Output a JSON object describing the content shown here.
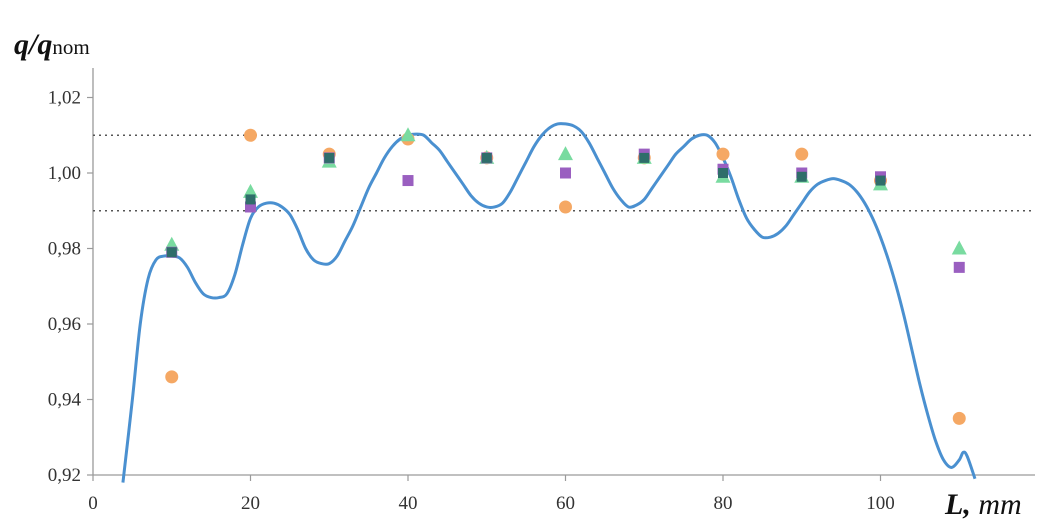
{
  "chart_data": {
    "type": "scatter",
    "title": "",
    "ylabel": {
      "var": "q/q",
      "sub": "nom"
    },
    "xlabel": {
      "var": "L,",
      "unit": "mm"
    },
    "xlim": [
      0,
      120
    ],
    "ylim": [
      0.92,
      1.03
    ],
    "x_ticks": [
      {
        "value": 0,
        "label": "0"
      },
      {
        "value": 20,
        "label": "20"
      },
      {
        "value": 40,
        "label": "40"
      },
      {
        "value": 60,
        "label": "60"
      },
      {
        "value": 80,
        "label": "80"
      },
      {
        "value": 100,
        "label": "100"
      }
    ],
    "y_ticks": [
      {
        "value": 0.92,
        "label": "0,92"
      },
      {
        "value": 0.94,
        "label": "0,94"
      },
      {
        "value": 0.96,
        "label": "0,96"
      },
      {
        "value": 0.98,
        "label": "0,98"
      },
      {
        "value": 1.0,
        "label": "1,00"
      },
      {
        "value": 1.02,
        "label": "1,02"
      }
    ],
    "reference_lines": [
      1.01,
      0.99
    ],
    "grid": false,
    "curve": {
      "color": "#4a90d0",
      "points": [
        [
          3.8,
          0.918
        ],
        [
          5,
          0.94
        ],
        [
          6,
          0.96
        ],
        [
          7,
          0.972
        ],
        [
          8,
          0.977
        ],
        [
          9,
          0.978
        ],
        [
          10,
          0.978
        ],
        [
          11,
          0.9775
        ],
        [
          12,
          0.975
        ],
        [
          13,
          0.971
        ],
        [
          14,
          0.968
        ],
        [
          15,
          0.967
        ],
        [
          16,
          0.967
        ],
        [
          17,
          0.968
        ],
        [
          18,
          0.973
        ],
        [
          19,
          0.981
        ],
        [
          20,
          0.988
        ],
        [
          21,
          0.991
        ],
        [
          22,
          0.992
        ],
        [
          23,
          0.992
        ],
        [
          24,
          0.991
        ],
        [
          25,
          0.989
        ],
        [
          26,
          0.985
        ],
        [
          27,
          0.98
        ],
        [
          28,
          0.977
        ],
        [
          29,
          0.976
        ],
        [
          30,
          0.976
        ],
        [
          31,
          0.978
        ],
        [
          32,
          0.982
        ],
        [
          33,
          0.986
        ],
        [
          34,
          0.991
        ],
        [
          35,
          0.996
        ],
        [
          36,
          1.0
        ],
        [
          37,
          1.004
        ],
        [
          38,
          1.007
        ],
        [
          39,
          1.009
        ],
        [
          40,
          1.01
        ],
        [
          41,
          1.0103
        ],
        [
          42,
          1.01
        ],
        [
          43,
          1.008
        ],
        [
          44,
          1.006
        ],
        [
          45,
          1.003
        ],
        [
          46,
          1.0
        ],
        [
          47,
          0.997
        ],
        [
          48,
          0.994
        ],
        [
          49,
          0.992
        ],
        [
          50,
          0.991
        ],
        [
          51,
          0.991
        ],
        [
          52,
          0.992
        ],
        [
          53,
          0.995
        ],
        [
          54,
          0.999
        ],
        [
          55,
          1.003
        ],
        [
          56,
          1.007
        ],
        [
          57,
          1.01
        ],
        [
          58,
          1.012
        ],
        [
          59,
          1.013
        ],
        [
          60,
          1.013
        ],
        [
          61,
          1.0125
        ],
        [
          62,
          1.011
        ],
        [
          63,
          1.008
        ],
        [
          64,
          1.004
        ],
        [
          65,
          1.0
        ],
        [
          66,
          0.996
        ],
        [
          67,
          0.993
        ],
        [
          68,
          0.991
        ],
        [
          69,
          0.9915
        ],
        [
          70,
          0.993
        ],
        [
          71,
          0.996
        ],
        [
          72,
          0.999
        ],
        [
          73,
          1.002
        ],
        [
          74,
          1.005
        ],
        [
          75,
          1.007
        ],
        [
          76,
          1.009
        ],
        [
          77,
          1.01
        ],
        [
          78,
          1.01
        ],
        [
          79,
          1.008
        ],
        [
          80,
          1.004
        ],
        [
          81,
          0.999
        ],
        [
          82,
          0.993
        ],
        [
          83,
          0.988
        ],
        [
          84,
          0.985
        ],
        [
          85,
          0.983
        ],
        [
          86,
          0.983
        ],
        [
          87,
          0.984
        ],
        [
          88,
          0.986
        ],
        [
          89,
          0.989
        ],
        [
          90,
          0.992
        ],
        [
          91,
          0.995
        ],
        [
          92,
          0.997
        ],
        [
          93,
          0.998
        ],
        [
          94,
          0.9985
        ],
        [
          95,
          0.998
        ],
        [
          96,
          0.997
        ],
        [
          97,
          0.995
        ],
        [
          98,
          0.992
        ],
        [
          99,
          0.988
        ],
        [
          100,
          0.983
        ],
        [
          101,
          0.977
        ],
        [
          102,
          0.97
        ],
        [
          103,
          0.962
        ],
        [
          104,
          0.953
        ],
        [
          105,
          0.944
        ],
        [
          106,
          0.936
        ],
        [
          107,
          0.929
        ],
        [
          108,
          0.924
        ],
        [
          109,
          0.922
        ],
        [
          110,
          0.924
        ],
        [
          110.5,
          0.926
        ],
        [
          111,
          0.925
        ],
        [
          112,
          0.919
        ]
      ]
    },
    "series": [
      {
        "marker": "circle",
        "color": "#f5a864",
        "points": [
          [
            10,
            0.946
          ],
          [
            20,
            1.01
          ],
          [
            30,
            1.005
          ],
          [
            40,
            1.009
          ],
          [
            50,
            1.004
          ],
          [
            60,
            0.991
          ],
          [
            70,
            1.004
          ],
          [
            80,
            1.005
          ],
          [
            90,
            1.005
          ],
          [
            100,
            0.998
          ],
          [
            110,
            0.935
          ]
        ]
      },
      {
        "marker": "triangle",
        "color": "#79dba0",
        "points": [
          [
            10,
            0.981
          ],
          [
            20,
            0.995
          ],
          [
            30,
            1.003
          ],
          [
            40,
            1.01
          ],
          [
            50,
            1.004
          ],
          [
            60,
            1.005
          ],
          [
            70,
            1.004
          ],
          [
            80,
            0.999
          ],
          [
            90,
            0.999
          ],
          [
            100,
            0.997
          ],
          [
            110,
            0.98
          ]
        ]
      },
      {
        "marker": "square",
        "color": "#9a5fc0",
        "points": [
          [
            10,
            0.979
          ],
          [
            20,
            0.991
          ],
          [
            30,
            1.004
          ],
          [
            40,
            0.998
          ],
          [
            50,
            1.004
          ],
          [
            60,
            1.0
          ],
          [
            70,
            1.005
          ],
          [
            80,
            1.001
          ],
          [
            90,
            1.0
          ],
          [
            100,
            0.999
          ],
          [
            110,
            0.975
          ]
        ]
      },
      {
        "marker": "square",
        "color": "#2f6e6a",
        "points": [
          [
            10,
            0.979
          ],
          [
            20,
            0.993
          ],
          [
            30,
            1.004
          ],
          [
            50,
            1.004
          ],
          [
            70,
            1.004
          ],
          [
            80,
            1.0
          ],
          [
            90,
            0.999
          ],
          [
            100,
            0.998
          ]
        ]
      }
    ]
  }
}
